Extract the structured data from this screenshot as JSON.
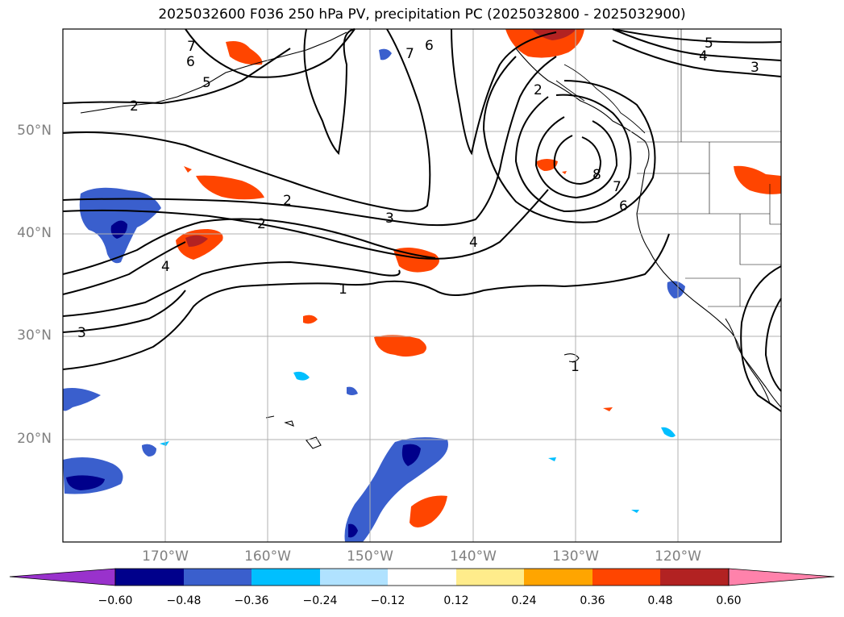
{
  "title": "2025032600 F036 250 hPa PV, precipitation PC (2025032800 - 2025032900)",
  "lat_labels": [
    "50°N",
    "40°N",
    "30°N",
    "20°N"
  ],
  "lon_labels": [
    "170°W",
    "160°W",
    "150°W",
    "140°W",
    "130°W",
    "120°W"
  ],
  "contour_labels": [
    "7",
    "6",
    "5",
    "2",
    "2",
    "2",
    "3",
    "4",
    "4",
    "1",
    "3",
    "1",
    "8",
    "7",
    "6",
    "7",
    "6",
    "5",
    "4",
    "3",
    "2"
  ],
  "colorbar": {
    "ticks": [
      "−0.60",
      "−0.48",
      "−0.36",
      "−0.24",
      "−0.12",
      "0.12",
      "0.24",
      "0.36",
      "0.48",
      "0.60"
    ],
    "colors": [
      "#9932cc",
      "#00008b",
      "#3a5fcd",
      "#00bfff",
      "#b0e2ff",
      "#ffffff",
      "#ffec8b",
      "#ffa500",
      "#ff4500",
      "#b22222",
      "#ff82ab"
    ]
  }
}
